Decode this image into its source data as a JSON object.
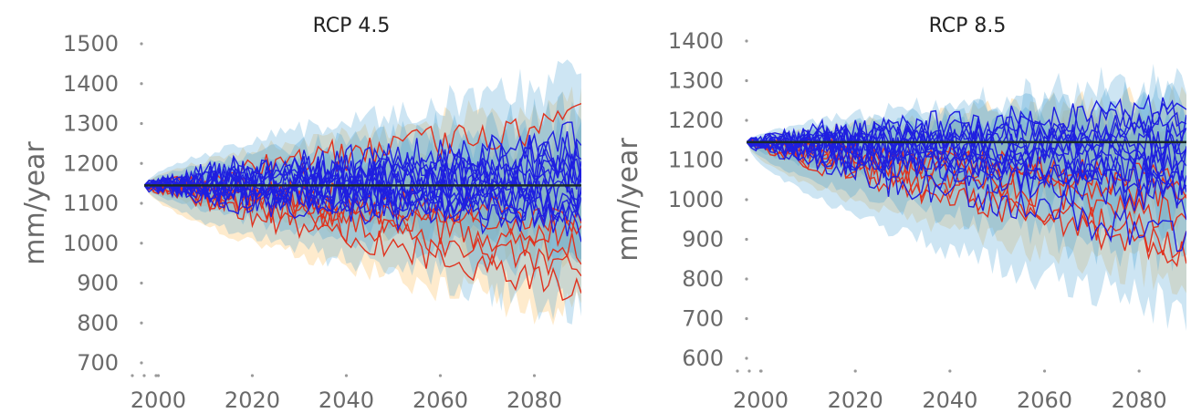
{
  "chart_data": [
    {
      "type": "line",
      "title": "RCP 4.5",
      "xlabel": "",
      "ylabel": "mm/year",
      "xlim": [
        1997,
        2090
      ],
      "ylim": [
        700,
        1500
      ],
      "xticks": [
        2000,
        2020,
        2040,
        2060,
        2080
      ],
      "yticks": [
        700,
        800,
        900,
        1000,
        1100,
        1200,
        1300,
        1400,
        1500
      ],
      "grid": false,
      "legend": "none",
      "colors": {
        "blue_runs": "#1f1fe0",
        "red_runs": "#e0321e",
        "blue_band": "#5aa9d8",
        "orange_band": "#fcc670",
        "mean_line": "#1a2a2a"
      },
      "baseline": {
        "x": [
          1997,
          2090
        ],
        "y": [
          1145,
          1145
        ]
      },
      "start_value": 1145,
      "blue_runs": [
        {
          "end": 1235,
          "amp": 55
        },
        {
          "end": 1180,
          "amp": 45
        },
        {
          "end": 1155,
          "amp": 60
        },
        {
          "end": 1120,
          "amp": 40
        },
        {
          "end": 1100,
          "amp": 55
        },
        {
          "end": 1070,
          "amp": 45
        },
        {
          "end": 1210,
          "amp": 65
        },
        {
          "end": 1260,
          "amp": 50
        },
        {
          "end": 1140,
          "amp": 70
        },
        {
          "end": 1085,
          "amp": 50
        },
        {
          "end": 1195,
          "amp": 45
        },
        {
          "end": 1125,
          "amp": 60
        },
        {
          "end": 1050,
          "amp": 55
        },
        {
          "end": 1165,
          "amp": 50
        }
      ],
      "red_runs": [
        {
          "end": 1305,
          "amp": 45
        },
        {
          "end": 1065,
          "amp": 40
        },
        {
          "end": 990,
          "amp": 45
        },
        {
          "end": 935,
          "amp": 45
        },
        {
          "end": 880,
          "amp": 40
        },
        {
          "end": 1020,
          "amp": 40
        }
      ],
      "blue_band": {
        "start": 1145,
        "upper_end": 1400,
        "lower_end": 850
      },
      "orange_band": {
        "start": 1145,
        "upper_end": 1350,
        "lower_end": 820
      }
    },
    {
      "type": "line",
      "title": "RCP 8.5",
      "xlabel": "",
      "ylabel": "mm/year",
      "xlim": [
        1997,
        2090
      ],
      "ylim": [
        600,
        1400
      ],
      "xticks": [
        2000,
        2020,
        2040,
        2060,
        2080
      ],
      "yticks": [
        600,
        700,
        800,
        900,
        1000,
        1100,
        1200,
        1300,
        1400
      ],
      "grid": false,
      "legend": "none",
      "colors": {
        "blue_runs": "#1f1fe0",
        "red_runs": "#e0321e",
        "blue_band": "#5aa9d8",
        "orange_band": "#fcc670",
        "mean_line": "#1a2a2a"
      },
      "baseline": {
        "x": [
          1997,
          2090
        ],
        "y": [
          1145,
          1145
        ]
      },
      "start_value": 1145,
      "blue_runs": [
        {
          "end": 1230,
          "amp": 50
        },
        {
          "end": 1190,
          "amp": 45
        },
        {
          "end": 1140,
          "amp": 55
        },
        {
          "end": 1110,
          "amp": 45
        },
        {
          "end": 1080,
          "amp": 55
        },
        {
          "end": 1060,
          "amp": 50
        },
        {
          "end": 1170,
          "amp": 50
        },
        {
          "end": 1020,
          "amp": 55
        },
        {
          "end": 900,
          "amp": 60
        },
        {
          "end": 1100,
          "amp": 60
        },
        {
          "end": 1205,
          "amp": 45
        },
        {
          "end": 1000,
          "amp": 55
        },
        {
          "end": 1125,
          "amp": 50
        },
        {
          "end": 1050,
          "amp": 45
        }
      ],
      "red_runs": [
        {
          "end": 1010,
          "amp": 45
        },
        {
          "end": 960,
          "amp": 45
        },
        {
          "end": 890,
          "amp": 45
        },
        {
          "end": 855,
          "amp": 40
        },
        {
          "end": 1040,
          "amp": 40
        }
      ],
      "blue_band": {
        "start": 1145,
        "upper_end": 1300,
        "lower_end": 720
      },
      "orange_band": {
        "start": 1145,
        "upper_end": 1250,
        "lower_end": 800
      }
    }
  ]
}
